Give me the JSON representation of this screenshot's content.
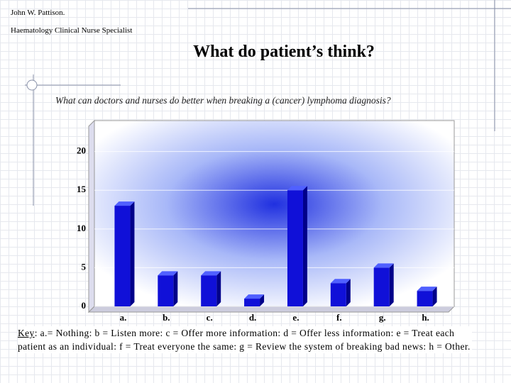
{
  "header": {
    "author": "John W. Pattison.",
    "role": "Haematology Clinical Nurse Specialist"
  },
  "chart_data": {
    "type": "bar3d",
    "title": "What do patient’s think?",
    "subtitle": "What can doctors and nurses do better when breaking a (cancer) lymphoma diagnosis?",
    "categories": [
      "a.",
      "b.",
      "c.",
      "d.",
      "e.",
      "f.",
      "g.",
      "h."
    ],
    "values": [
      13,
      4,
      4,
      1,
      15,
      3,
      5,
      2
    ],
    "color": "#1010d8",
    "ylim": [
      0,
      24
    ],
    "yticks": [
      0,
      5,
      10,
      15,
      20
    ],
    "grid": true
  },
  "key": {
    "label": "Key",
    "text": ": a.= Nothing: b = Listen more: c = Offer more information: d = Offer less information: e = Treat each patient as an individual: f = Treat everyone the same: g = Review the system of breaking bad news: h = Other."
  }
}
